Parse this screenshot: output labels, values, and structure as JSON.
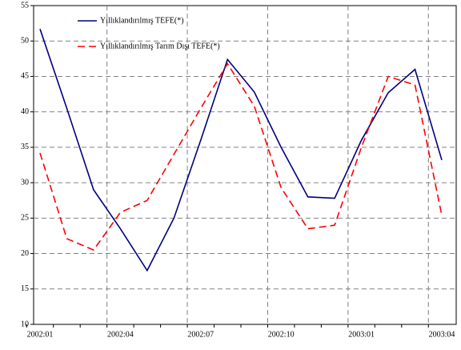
{
  "chart_data": {
    "type": "line",
    "categories": [
      "2002:01",
      null,
      null,
      "2002:04",
      null,
      null,
      "2002:07",
      null,
      null,
      "2002:10",
      null,
      null,
      "2003:01",
      null,
      null,
      "2003:04"
    ],
    "series": [
      {
        "name": "Yıllıklandırılmış TEFE(*)",
        "color": "#000080",
        "dash": false,
        "values": [
          51.7,
          40.5,
          29,
          23.5,
          17.6,
          25,
          36,
          47.4,
          42.8,
          35,
          28,
          27.8,
          36,
          42.7,
          46,
          33.2
        ]
      },
      {
        "name": "Yıllıklandırılmış Tarım Dışı TEFE(*)",
        "color": "#ff0000",
        "dash": true,
        "values": [
          34.2,
          22.1,
          20.5,
          25.8,
          27.5,
          34,
          40.5,
          46.8,
          40.8,
          29.3,
          23.5,
          24,
          35,
          45,
          43.8,
          25.4
        ]
      }
    ],
    "ylim": [
      10,
      55
    ],
    "yticks": [
      10,
      15,
      20,
      25,
      30,
      35,
      40,
      45,
      50,
      55
    ],
    "grid": true,
    "legend": "upper-left"
  }
}
